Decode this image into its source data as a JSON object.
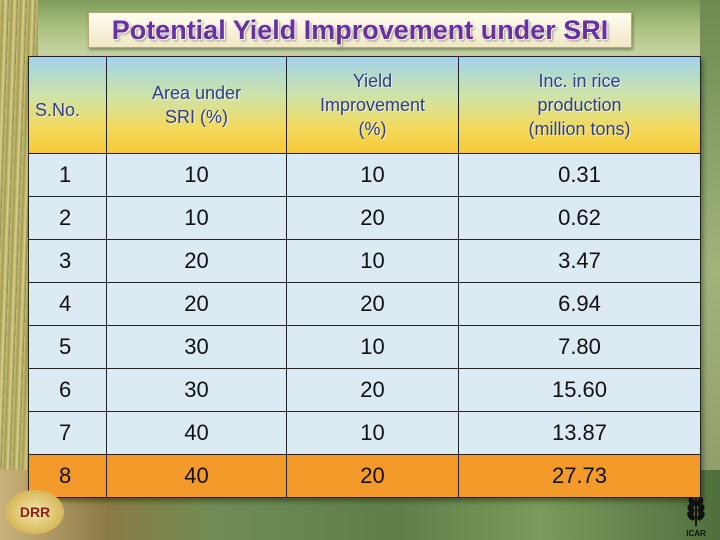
{
  "title": "Potential Yield Improvement under SRI",
  "table": {
    "headers": {
      "sno": "S.No.",
      "area_line1": "Area under",
      "area_line2": "SRI (%)",
      "yield_line1": "Yield",
      "yield_line2": "Improvement",
      "yield_line3": "(%)",
      "inc_line1": "Inc. in rice",
      "inc_line2": "production",
      "inc_line3": "(million tons)"
    },
    "rows": [
      {
        "sno": "1",
        "area": "10",
        "yield": "10",
        "inc": "0.31"
      },
      {
        "sno": "2",
        "area": "10",
        "yield": "20",
        "inc": "0.62"
      },
      {
        "sno": "3",
        "area": "20",
        "yield": "10",
        "inc": "3.47"
      },
      {
        "sno": "4",
        "area": "20",
        "yield": "20",
        "inc": "6.94"
      },
      {
        "sno": "5",
        "area": "30",
        "yield": "10",
        "inc": "7.80"
      },
      {
        "sno": "6",
        "area": "30",
        "yield": "20",
        "inc": "15.60"
      },
      {
        "sno": "7",
        "area": "40",
        "yield": "10",
        "inc": "13.87"
      },
      {
        "sno": "8",
        "area": "40",
        "yield": "20",
        "inc": "27.73"
      }
    ],
    "highlight_row_color": "#f39a2a",
    "row_color": "#dbeaf3"
  },
  "logos": {
    "left_text": "DRR",
    "right_text": "ICAR"
  },
  "colors": {
    "title": "#6a2fa6",
    "header_text": "#2c3e8c"
  }
}
